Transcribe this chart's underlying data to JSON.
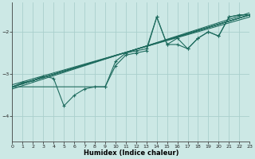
{
  "xlabel": "Humidex (Indice chaleur)",
  "background_color": "#cce8e5",
  "grid_color": "#aacfcc",
  "line_color": "#1e6b5e",
  "xlim": [
    0,
    23
  ],
  "ylim": [
    -4.6,
    -1.3
  ],
  "yticks": [
    -4,
    -3,
    -2
  ],
  "xticks": [
    0,
    1,
    2,
    3,
    4,
    5,
    6,
    7,
    8,
    9,
    10,
    11,
    12,
    13,
    14,
    15,
    16,
    17,
    18,
    19,
    20,
    21,
    22,
    23
  ],
  "series": [
    {
      "x": [
        0,
        1,
        2,
        3,
        4,
        5,
        6,
        7,
        8,
        9,
        10,
        11,
        12,
        13,
        14,
        15,
        16,
        17,
        18,
        19,
        20,
        21,
        22,
        23
      ],
      "y": [
        -3.3,
        -3.2,
        -3.15,
        -3.05,
        -3.1,
        -3.75,
        -3.5,
        -3.35,
        -3.3,
        -3.3,
        -2.8,
        -2.55,
        -2.5,
        -2.45,
        -1.65,
        -2.3,
        -2.15,
        -2.4,
        -2.15,
        -2.0,
        -2.1,
        -1.65,
        -1.6,
        -1.6
      ],
      "marker": true
    },
    {
      "x": [
        0,
        23
      ],
      "y": [
        -3.3,
        -1.6
      ],
      "marker": false
    },
    {
      "x": [
        0,
        23
      ],
      "y": [
        -3.3,
        -1.6
      ],
      "marker": false
    },
    {
      "x": [
        0,
        23
      ],
      "y": [
        -3.3,
        -1.6
      ],
      "marker": false
    },
    {
      "x": [
        0,
        9,
        10,
        11,
        12,
        13,
        14,
        15,
        16,
        17,
        18,
        19,
        20,
        21,
        22,
        23
      ],
      "y": [
        -3.3,
        -3.3,
        -2.7,
        -2.5,
        -2.45,
        -2.4,
        -1.65,
        -2.3,
        -2.3,
        -2.4,
        -2.15,
        -2.0,
        -2.1,
        -1.65,
        -1.6,
        -1.6
      ],
      "marker": true
    }
  ],
  "straight_lines": [
    {
      "x": [
        0,
        23
      ],
      "y": [
        -3.3,
        -1.6
      ]
    },
    {
      "x": [
        0,
        23
      ],
      "y": [
        -3.35,
        -1.55
      ]
    },
    {
      "x": [
        0,
        23
      ],
      "y": [
        -3.25,
        -1.65
      ]
    }
  ]
}
